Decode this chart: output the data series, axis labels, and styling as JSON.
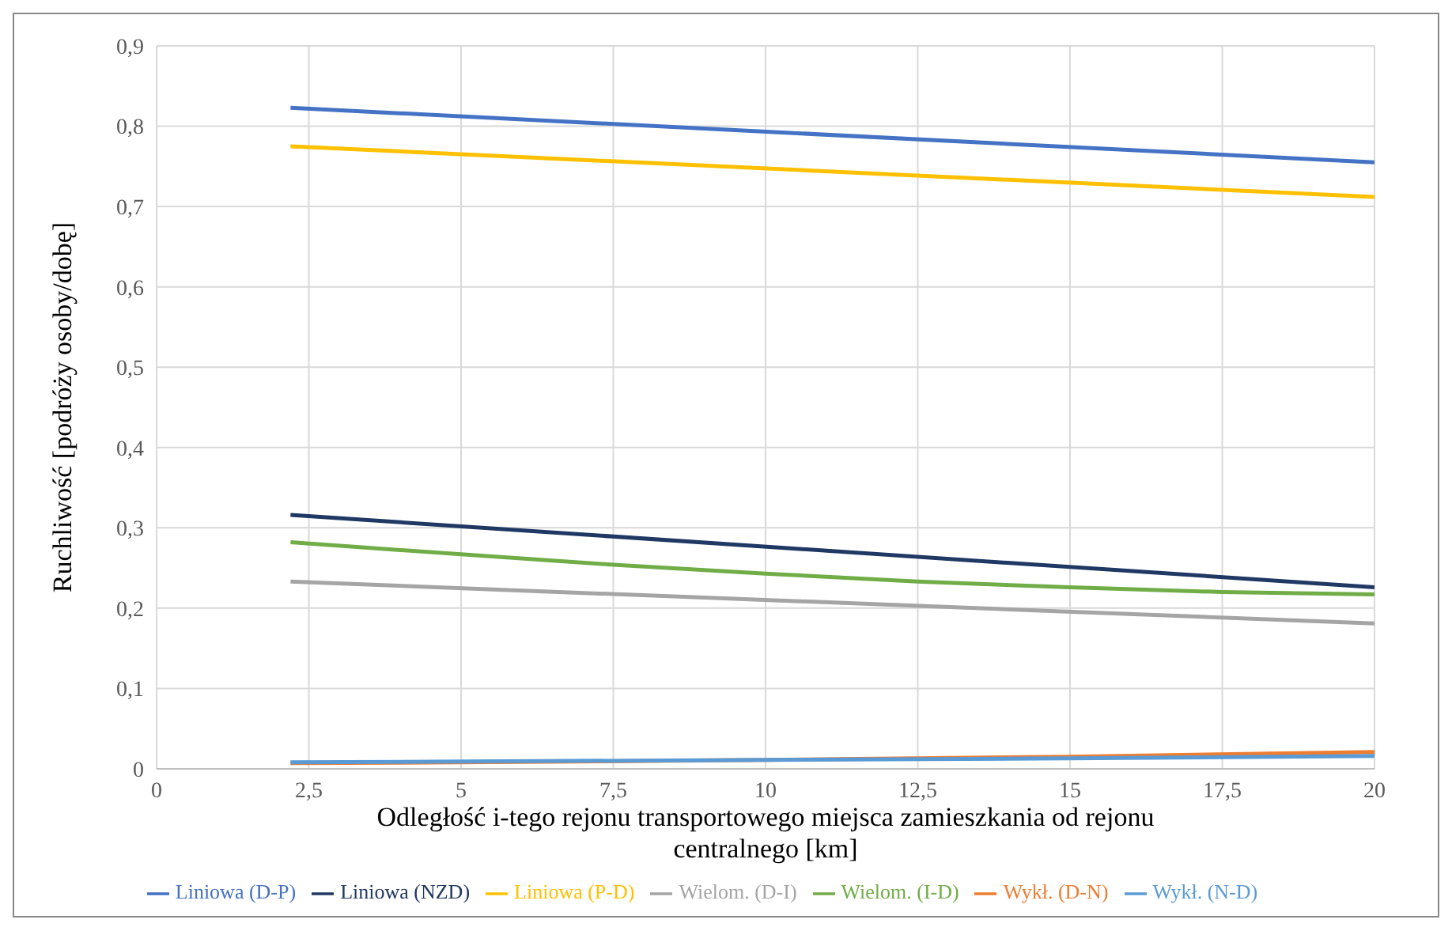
{
  "chart_data": {
    "type": "line",
    "xlabel": "Odległość i-tego rejonu transportowego miejsca zamieszkania od rejonu centralnego [km]",
    "ylabel": "Ruchliwość  [podróży osoby/dobę]",
    "xlim": [
      0,
      20
    ],
    "xticks": [
      0,
      {
        "value": 2.5,
        "label": "2,5"
      },
      5,
      {
        "value": 7.5,
        "label": "7,5"
      },
      10,
      {
        "value": 12.5,
        "label": "12,5"
      },
      15,
      {
        "value": 17.5,
        "label": "17,5"
      },
      20
    ],
    "ylim": [
      0,
      0.9
    ],
    "yticks": [
      0,
      {
        "value": 0.1,
        "label": "0,1"
      },
      {
        "value": 0.2,
        "label": "0,2"
      },
      {
        "value": 0.3,
        "label": "0,3"
      },
      {
        "value": 0.4,
        "label": "0,4"
      },
      {
        "value": 0.5,
        "label": "0,5"
      },
      {
        "value": 0.6,
        "label": "0,6"
      },
      {
        "value": 0.7,
        "label": "0,7"
      },
      {
        "value": 0.8,
        "label": "0,8"
      },
      {
        "value": 0.9,
        "label": "0,9"
      }
    ],
    "grid": true,
    "legend": "bottom",
    "marker": "none",
    "series": [
      {
        "name": "Liniowa (D-P)",
        "color": "#4472c4",
        "x": [
          2.2,
          20
        ],
        "values": [
          0.823,
          0.755
        ]
      },
      {
        "name": "Wykł. (D-N)",
        "color": "#ed7d31",
        "x": [
          2.2,
          5,
          10,
          15,
          20
        ],
        "values": [
          0.007,
          0.008,
          0.011,
          0.015,
          0.021
        ]
      },
      {
        "name": "Wielom. (D-I)",
        "color": "#a5a5a5",
        "x": [
          2.2,
          20
        ],
        "values": [
          0.233,
          0.181
        ]
      },
      {
        "name": "Liniowa (P-D)",
        "color": "#ffc000",
        "x": [
          2.2,
          20
        ],
        "values": [
          0.775,
          0.712
        ]
      },
      {
        "name": "Wykł. (N-D)",
        "color": "#5b9bd5",
        "x": [
          2.2,
          5,
          10,
          15,
          20
        ],
        "values": [
          0.008,
          0.009,
          0.011,
          0.013,
          0.016
        ]
      },
      {
        "name": "Wielom. (I-D)",
        "color": "#70ad47",
        "x": [
          2.2,
          5,
          7.5,
          10,
          12.5,
          15,
          17.5,
          20
        ],
        "values": [
          0.282,
          0.267,
          0.254,
          0.243,
          0.233,
          0.226,
          0.22,
          0.217
        ]
      },
      {
        "name": "Liniowa (NZD)",
        "color": "#203864",
        "x": [
          2.2,
          20
        ],
        "values": [
          0.316,
          0.226
        ]
      }
    ]
  }
}
